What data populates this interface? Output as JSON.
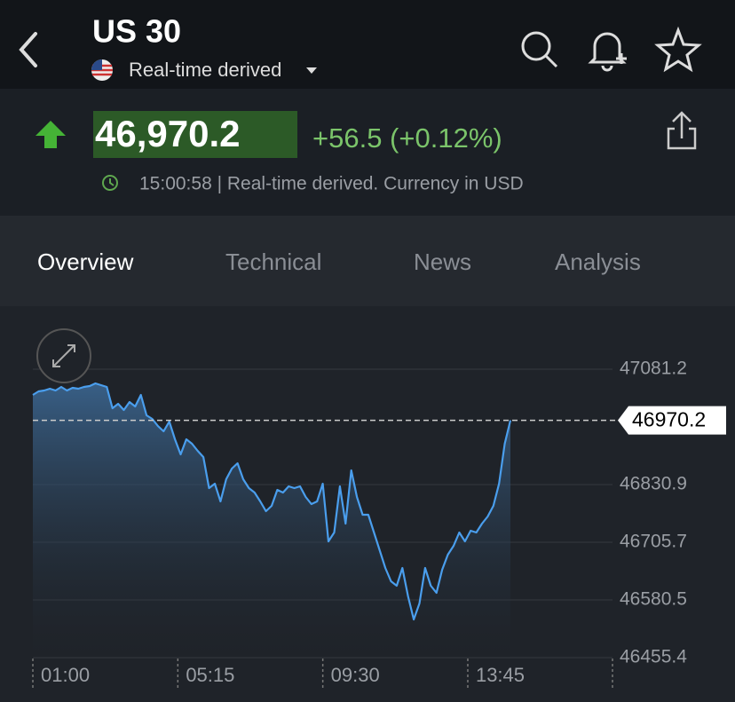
{
  "header": {
    "title": "US 30",
    "subtitle": "Real-time derived"
  },
  "quote": {
    "price": "46,970.2",
    "change": "+56.5 (+0.12%)",
    "timestamp": "15:00:58 | Real-time derived. Currency in USD"
  },
  "tabs": [
    "Overview",
    "Technical",
    "News",
    "Analysis"
  ],
  "chart_data": {
    "type": "area",
    "x": [
      "01:00",
      "01:10",
      "01:20",
      "01:30",
      "01:40",
      "01:50",
      "02:00",
      "02:10",
      "02:20",
      "02:30",
      "02:40",
      "02:50",
      "03:00",
      "03:10",
      "03:20",
      "03:30",
      "03:40",
      "03:50",
      "04:00",
      "04:10",
      "04:20",
      "04:30",
      "04:40",
      "04:50",
      "05:00",
      "05:10",
      "05:20",
      "05:30",
      "05:40",
      "05:50",
      "06:00",
      "06:10",
      "06:20",
      "06:30",
      "06:40",
      "06:50",
      "07:00",
      "07:10",
      "07:20",
      "07:30",
      "07:40",
      "07:50",
      "08:00",
      "08:10",
      "08:20",
      "08:30",
      "08:40",
      "08:50",
      "09:00",
      "09:10",
      "09:20",
      "09:30",
      "09:40",
      "09:50",
      "10:00",
      "10:10",
      "10:20",
      "10:30",
      "10:40",
      "10:50",
      "11:00",
      "11:10",
      "11:20",
      "11:30",
      "11:40",
      "11:50",
      "12:00",
      "12:10",
      "12:20",
      "12:30",
      "12:40",
      "12:50",
      "13:00",
      "13:10",
      "13:20",
      "13:30",
      "13:40",
      "13:50",
      "14:00",
      "14:10",
      "14:20",
      "14:30",
      "14:40",
      "14:50",
      "15:00"
    ],
    "values": [
      47025.4,
      47033.1,
      47035.0,
      47038.8,
      47035.0,
      47042.7,
      47035.0,
      47040.8,
      47038.8,
      47042.7,
      47044.6,
      47050.4,
      47046.5,
      47042.7,
      46996.5,
      47006.1,
      46992.6,
      47010.0,
      47000.3,
      47025.4,
      46981.1,
      46973.4,
      46958.0,
      46946.4,
      46967.6,
      46929.1,
      46896.4,
      46929.1,
      46919.5,
      46904.1,
      46890.6,
      46823.2,
      46832.8,
      46794.3,
      46842.4,
      46865.5,
      46877.1,
      46842.4,
      46823.2,
      46813.6,
      46794.3,
      46773.1,
      46784.7,
      46819.3,
      46813.6,
      46827.0,
      46823.2,
      46827.0,
      46803.9,
      46788.5,
      46794.3,
      46832.8,
      46707.7,
      46726.9,
      46827.0,
      46746.2,
      46861.7,
      46803.9,
      46765.4,
      46765.4,
      46726.9,
      46688.4,
      46649.9,
      46621.0,
      46611.4,
      46649.9,
      46588.3,
      46538.2,
      46572.9,
      46649.9,
      46611.4,
      46596.0,
      46646.0,
      46678.8,
      46698.0,
      46726.9,
      46707.7,
      46730.8,
      46726.9,
      46746.2,
      46761.6,
      46784.7,
      46832.8,
      46919.5,
      46970.2
    ],
    "color": "#4a9eed",
    "xlim": [
      "01:00",
      "15:00"
    ],
    "xticks": [
      "01:00",
      "05:15",
      "09:30",
      "13:45"
    ],
    "ylim": [
      46455.4,
      47081.2
    ],
    "yticks": [
      47081.2,
      46830.9,
      46705.7,
      46580.5,
      46455.4
    ],
    "grid": true,
    "last_value": 46970.2
  }
}
